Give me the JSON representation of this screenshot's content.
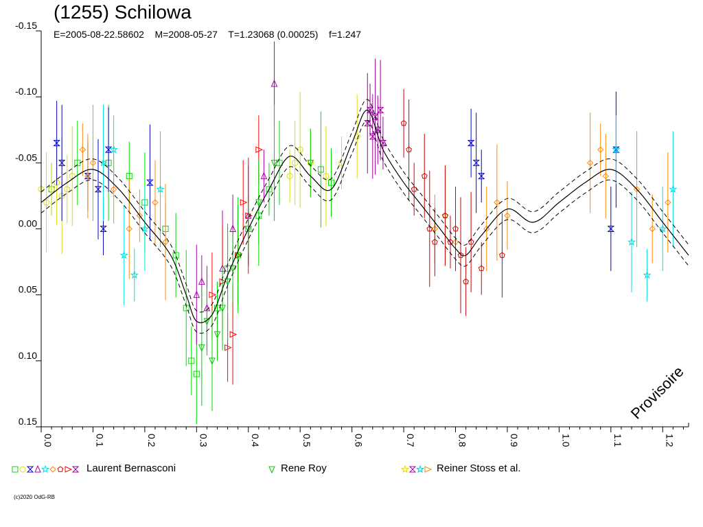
{
  "header": {
    "title": "(1255) Schilowa",
    "subtitle": "E=2005-08-22.58602    M=2008-05-27    T=1.23068 (0.00025)    f=1.247"
  },
  "watermark": "Provisoire",
  "copyright": "(c)2020 OdG-RB",
  "legend": [
    {
      "label": "Laurent Bernasconi",
      "colors": [
        "#00dd00",
        "#dddd00",
        "#0000cc",
        "#aa00aa",
        "#00dddd",
        "#ff8800",
        "#cc0000",
        "#ff0000",
        "#990099"
      ]
    },
    {
      "label": "Rene Roy",
      "colors": [
        "#00cc00"
      ]
    },
    {
      "label": "Reiner Stoss et al.",
      "colors": [
        "#dddd00",
        "#aa00aa",
        "#00cccc",
        "#ff8800"
      ]
    }
  ],
  "chart_data": {
    "type": "scatter",
    "title": "(1255) Schilowa",
    "xlabel": "",
    "ylabel": "",
    "xlim": [
      0.0,
      1.25
    ],
    "ylim": [
      0.15,
      -0.15
    ],
    "y_inverted": true,
    "x_ticks": [
      "0.0",
      "0.1",
      "0.2",
      "0.3",
      "0.4",
      "0.5",
      "0.6",
      "0.7",
      "0.8",
      "0.9",
      "1.0",
      "1.1",
      "1.2"
    ],
    "y_ticks": [
      "-0.15",
      "-0.10",
      "-0.05",
      "0.00",
      "0.05",
      "0.10",
      "0.15"
    ],
    "model_curve": {
      "x": [
        0.0,
        0.05,
        0.1,
        0.15,
        0.2,
        0.25,
        0.28,
        0.3,
        0.33,
        0.36,
        0.4,
        0.44,
        0.48,
        0.52,
        0.56,
        0.6,
        0.63,
        0.66,
        0.7,
        0.73,
        0.77,
        0.8,
        0.82,
        0.85,
        0.9,
        0.95,
        1.0,
        1.05,
        1.1,
        1.15,
        1.2,
        1.25
      ],
      "y": [
        -0.02,
        -0.035,
        -0.045,
        -0.03,
        -0.005,
        0.02,
        0.05,
        0.07,
        0.065,
        0.035,
        0.0,
        -0.03,
        -0.055,
        -0.04,
        -0.03,
        -0.065,
        -0.09,
        -0.06,
        -0.035,
        -0.02,
        0.0,
        0.015,
        0.02,
        0.005,
        -0.015,
        -0.005,
        -0.02,
        -0.035,
        -0.045,
        -0.03,
        -0.005,
        0.02
      ],
      "band_offset": 0.008
    },
    "series": [
      {
        "name": "Laurent Bernasconi (green)",
        "color": "#00dd00",
        "marker": "square",
        "x": [
          0.02,
          0.07,
          0.13,
          0.17,
          0.2,
          0.24,
          0.26,
          0.28,
          0.29,
          0.3,
          0.34,
          0.36,
          0.38,
          0.4,
          0.42,
          0.44,
          0.46,
          0.54,
          0.56
        ],
        "y": [
          -0.03,
          -0.05,
          -0.05,
          -0.04,
          -0.02,
          0.0,
          0.02,
          0.06,
          0.1,
          0.11,
          0.06,
          0.03,
          0.02,
          0.0,
          -0.01,
          -0.03,
          -0.05,
          -0.045,
          -0.035
        ]
      },
      {
        "name": "Laurent Bernasconi (yellow)",
        "color": "#dddd00",
        "marker": "circle",
        "x": [
          0.0,
          0.01,
          0.02,
          0.03,
          0.04,
          0.05,
          0.06,
          0.48,
          0.49,
          0.5,
          0.52,
          0.55,
          0.58,
          0.61
        ],
        "y": [
          -0.03,
          -0.02,
          -0.03,
          -0.035,
          -0.025,
          -0.03,
          -0.04,
          -0.04,
          -0.05,
          -0.06,
          -0.05,
          -0.04,
          -0.05,
          -0.07
        ]
      },
      {
        "name": "Laurent Bernasconi (blue)",
        "color": "#0000cc",
        "marker": "hourglass",
        "x": [
          0.03,
          0.04,
          0.09,
          0.11,
          0.12,
          0.13,
          0.21,
          0.83,
          0.84,
          0.85,
          1.1,
          1.11
        ],
        "y": [
          -0.065,
          -0.05,
          -0.04,
          -0.03,
          0.0,
          -0.06,
          -0.035,
          -0.065,
          -0.05,
          -0.04,
          0.0,
          -0.06
        ]
      },
      {
        "name": "Laurent Bernasconi (purple)",
        "color": "#aa00aa",
        "marker": "triangle",
        "x": [
          0.3,
          0.31,
          0.32,
          0.35,
          0.37,
          0.4,
          0.43,
          0.45
        ],
        "y": [
          0.05,
          0.04,
          0.06,
          0.03,
          0.0,
          -0.01,
          -0.04,
          -0.11
        ]
      },
      {
        "name": "Laurent Bernasconi (cyan)",
        "color": "#00dddd",
        "marker": "star",
        "x": [
          0.12,
          0.14,
          0.16,
          0.18,
          0.2,
          0.23,
          1.11,
          1.14,
          1.17,
          1.2,
          1.22
        ],
        "y": [
          -0.05,
          -0.06,
          0.02,
          0.035,
          0.0,
          -0.03,
          -0.06,
          0.01,
          0.035,
          0.0,
          -0.03
        ]
      },
      {
        "name": "Laurent Bernasconi (orange)",
        "color": "#ff8800",
        "marker": "diamond",
        "x": [
          0.08,
          0.09,
          0.1,
          0.14,
          0.17,
          0.19,
          0.22,
          0.24,
          0.76,
          0.78,
          0.8,
          0.86,
          0.88,
          0.9,
          1.06,
          1.08,
          1.09,
          1.15,
          1.18,
          1.21
        ],
        "y": [
          -0.06,
          -0.04,
          -0.05,
          -0.03,
          0.0,
          -0.01,
          -0.02,
          0.01,
          0.0,
          -0.01,
          0.01,
          0.0,
          -0.02,
          -0.01,
          -0.05,
          -0.06,
          -0.04,
          -0.03,
          0.0,
          -0.02
        ]
      },
      {
        "name": "Laurent Bernasconi (red pentagon)",
        "color": "#cc0000",
        "marker": "pentagon",
        "x": [
          0.7,
          0.71,
          0.72,
          0.74,
          0.75,
          0.76,
          0.78,
          0.79,
          0.8,
          0.81,
          0.82,
          0.83,
          0.85,
          0.89
        ],
        "y": [
          -0.08,
          -0.06,
          -0.03,
          -0.04,
          0.0,
          0.01,
          -0.01,
          0.01,
          0.0,
          0.02,
          0.04,
          0.01,
          0.03,
          0.02
        ]
      },
      {
        "name": "Laurent Bernasconi (red triangle)",
        "color": "#ff0000",
        "marker": "triangle-right",
        "x": [
          0.33,
          0.35,
          0.36,
          0.37,
          0.38,
          0.39,
          0.4,
          0.42
        ],
        "y": [
          0.05,
          0.04,
          0.09,
          0.08,
          0.02,
          -0.02,
          -0.01,
          -0.06
        ]
      },
      {
        "name": "Laurent Bernasconi (magenta)",
        "color": "#990099",
        "marker": "hourglass",
        "x": [
          0.63,
          0.635,
          0.64,
          0.645,
          0.65,
          0.655,
          0.66
        ],
        "y": [
          -0.08,
          -0.09,
          -0.07,
          -0.085,
          -0.075,
          -0.09,
          -0.065
        ]
      },
      {
        "name": "Rene Roy",
        "color": "#00cc00",
        "marker": "triangle-down",
        "x": [
          0.31,
          0.32,
          0.33,
          0.34,
          0.35,
          0.36,
          0.37,
          0.38,
          0.4,
          0.42,
          0.45,
          0.52
        ],
        "y": [
          0.09,
          0.07,
          0.1,
          0.08,
          0.06,
          0.04,
          0.03,
          0.02,
          0.0,
          -0.02,
          -0.05,
          -0.05
        ]
      }
    ]
  }
}
